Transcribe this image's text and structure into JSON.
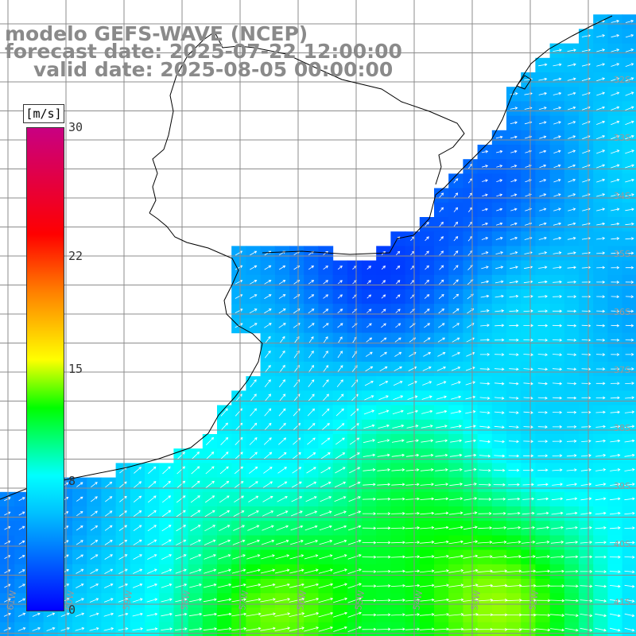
{
  "title": {
    "line1": "modelo GEFS-WAVE (NCEP)",
    "line2": "forecast date: 2025-07-22 12:00:00",
    "line3": "valid date: 2025-08-05 00:00:00"
  },
  "colorbar": {
    "units": "[m/s]",
    "min": 0,
    "max": 30,
    "ticks": [
      {
        "value": 30,
        "label": "30"
      },
      {
        "value": 22,
        "label": "22"
      },
      {
        "value": 15,
        "label": "15"
      },
      {
        "value": 8,
        "label": "8"
      },
      {
        "value": 0,
        "label": "0"
      }
    ],
    "stops": [
      "#0000ff",
      "#00bfff",
      "#00ffff",
      "#00ff00",
      "#ffff00",
      "#ff8000",
      "#ff0000",
      "#c80082"
    ]
  },
  "map": {
    "lat_labels": [
      "32S",
      "33S",
      "34S",
      "35S",
      "36S",
      "37S",
      "38S",
      "39S",
      "40S",
      "41S"
    ],
    "lon_labels": [
      "61W",
      "60W",
      "59W",
      "58W",
      "57W",
      "56W",
      "55W",
      "54W",
      "53W",
      "52W"
    ],
    "land_color": "#ffffff",
    "grid_color": "#8c8c8c",
    "coast_color": "#000000",
    "arrow_color": "#ffffff"
  }
}
